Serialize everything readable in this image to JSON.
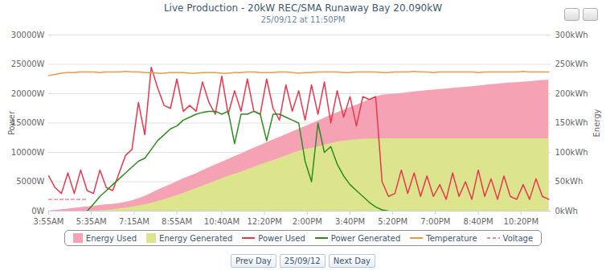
{
  "chart_data": {
    "type": "line",
    "title": "Live Production - 20kW REC/SMA Runaway Bay 20.090kW",
    "subtitle": "25/09/12 at 11:50PM",
    "ylabel": "Power",
    "y2label": "Energy",
    "grid": true,
    "legend": "bottom",
    "x": [
      235,
      250,
      265,
      280,
      295,
      310,
      325,
      340,
      355,
      370,
      385,
      400,
      415,
      430,
      445,
      460,
      475,
      490,
      505,
      520,
      535,
      550,
      565,
      580,
      595,
      610,
      625,
      640,
      655,
      670,
      685,
      700,
      715,
      730,
      745,
      760,
      775,
      790,
      805,
      820,
      835,
      850,
      865,
      880,
      895,
      910,
      925,
      940,
      955,
      970,
      985,
      1000,
      1015,
      1030,
      1045,
      1060,
      1075,
      1090,
      1105,
      1120,
      1135,
      1150,
      1165,
      1180,
      1195,
      1210,
      1225,
      1240,
      1255,
      1270,
      1285,
      1300,
      1315,
      1330,
      1345,
      1360,
      1375,
      1390,
      1405
    ],
    "xlim": [
      235,
      1410
    ],
    "xticks": [
      {
        "value": 235,
        "label": "3:55AM"
      },
      {
        "value": 335,
        "label": "5:35AM"
      },
      {
        "value": 435,
        "label": "7:15AM"
      },
      {
        "value": 535,
        "label": "8:55AM"
      },
      {
        "value": 640,
        "label": "10:40AM"
      },
      {
        "value": 740,
        "label": "12:20PM"
      },
      {
        "value": 840,
        "label": "2:00PM"
      },
      {
        "value": 940,
        "label": "3:40PM"
      },
      {
        "value": 1040,
        "label": "5:20PM"
      },
      {
        "value": 1140,
        "label": "7:00PM"
      },
      {
        "value": 1240,
        "label": "8:40PM"
      },
      {
        "value": 1340,
        "label": "10:20PM"
      }
    ],
    "ylim": [
      0,
      30000
    ],
    "yticks": [
      {
        "value": 0,
        "label": "0W"
      },
      {
        "value": 5000,
        "label": "5000W"
      },
      {
        "value": 10000,
        "label": "10000W"
      },
      {
        "value": 15000,
        "label": "15000W"
      },
      {
        "value": 20000,
        "label": "20000W"
      },
      {
        "value": 25000,
        "label": "25000W"
      },
      {
        "value": 30000,
        "label": "30000W"
      }
    ],
    "y2lim": [
      0,
      300
    ],
    "y2ticks": [
      {
        "value": 0,
        "label": "0kWh"
      },
      {
        "value": 50,
        "label": "50kWh"
      },
      {
        "value": 100,
        "label": "100kWh"
      },
      {
        "value": 150,
        "label": "150kWh"
      },
      {
        "value": 200,
        "label": "200kWh"
      },
      {
        "value": 250,
        "label": "250kWh"
      },
      {
        "value": 300,
        "label": "300kWh"
      }
    ],
    "series": [
      {
        "name": "Energy Used",
        "type": "area",
        "axis": "y2",
        "color": "#f5a3b4",
        "values": [
          0,
          1.3,
          2.3,
          3.5,
          4.7,
          6,
          7.3,
          8.2,
          9.5,
          10.9,
          11.8,
          13.1,
          15.1,
          17.6,
          21.2,
          25,
          30,
          35.7,
          40.5,
          45,
          50,
          55,
          59.4,
          63.8,
          68.8,
          73.9,
          78.3,
          83.2,
          88.1,
          92.7,
          97.4,
          102.3,
          107.3,
          111.5,
          116.4,
          121.4,
          125.6,
          130,
          134.8,
          139.5,
          144,
          148.6,
          153.4,
          158.3,
          162.9,
          167.3,
          171.9,
          176.3,
          180.6,
          184.8,
          189.6,
          194.4,
          197.5,
          198.5,
          199.2,
          200.5,
          201.7,
          203,
          204.1,
          205.2,
          206.3,
          207.2,
          208,
          209.1,
          210.2,
          211.1,
          212,
          213.1,
          214.3,
          215.3,
          216.3,
          217.3,
          218.4,
          219,
          219.8,
          220.6,
          221.5,
          222.5,
          223
        ]
      },
      {
        "name": "Energy Generated",
        "type": "area",
        "axis": "y2",
        "color": "#dce58d",
        "values": [
          0,
          0,
          0,
          0,
          0,
          0,
          0,
          0.2,
          0.7,
          1.4,
          2.4,
          3.6,
          5.1,
          6.9,
          8.9,
          11.1,
          13.5,
          16.3,
          19.4,
          22.8,
          26.4,
          30.2,
          34.1,
          38.2,
          42.4,
          46.6,
          50.9,
          55.1,
          59.3,
          62.9,
          66.4,
          70.5,
          74.7,
          78.9,
          82.5,
          86.1,
          90.2,
          94.3,
          98.2,
          102,
          105,
          106.7,
          109.2,
          112.3,
          115,
          117.4,
          119.2,
          120.5,
          121.5,
          122.3,
          122.8,
          123.1,
          123.2,
          123.2,
          123.2,
          123.2,
          123.2,
          123.2,
          123.2,
          123.2,
          123.2,
          123.2,
          123.2,
          123.2,
          123.2,
          123.2,
          123.2,
          123.2,
          123.2,
          123.2,
          123.2,
          123.2,
          123.2,
          123.2,
          123.2,
          123.2,
          123.2,
          123.2,
          123.2
        ]
      },
      {
        "name": "Power Used",
        "type": "line",
        "color": "#e8374e",
        "values": [
          6000,
          4000,
          3000,
          6500,
          3000,
          7000,
          3500,
          3000,
          7000,
          4000,
          3500,
          6500,
          9500,
          10500,
          18500,
          13000,
          24500,
          21000,
          18000,
          17500,
          22500,
          17000,
          18000,
          17000,
          22000,
          18500,
          16500,
          23000,
          16500,
          20500,
          17000,
          22500,
          17000,
          16500,
          22500,
          17500,
          15500,
          21500,
          17000,
          20500,
          15500,
          21500,
          16500,
          22000,
          15000,
          20500,
          16000,
          19500,
          14500,
          19500,
          19000,
          19500,
          5000,
          2500,
          3000,
          7000,
          3000,
          6500,
          2500,
          6000,
          2500,
          4500,
          2000,
          6500,
          2500,
          5000,
          2000,
          7000,
          2500,
          5500,
          2000,
          6000,
          2500,
          2000,
          4500,
          2000,
          5500,
          2500,
          2000
        ]
      },
      {
        "name": "Power Generated",
        "type": "line",
        "color": "#2e8b1e",
        "values": [
          null,
          null,
          null,
          null,
          null,
          null,
          0,
          1200,
          2500,
          3500,
          4500,
          5500,
          6500,
          7500,
          8500,
          9000,
          10500,
          12000,
          13000,
          14000,
          14500,
          15500,
          16000,
          16500,
          16800,
          17000,
          17000,
          16500,
          17000,
          11500,
          16500,
          16500,
          17000,
          16500,
          12000,
          16500,
          16500,
          16000,
          15500,
          15000,
          8500,
          5000,
          15000,
          10000,
          11000,
          8000,
          6000,
          4500,
          3500,
          2500,
          1500,
          700,
          200,
          0,
          null,
          null,
          null,
          null,
          null,
          null,
          null,
          null,
          null,
          null,
          null,
          null,
          null,
          null,
          null,
          null,
          null,
          null,
          null,
          null,
          null,
          null,
          null,
          null,
          null
        ]
      },
      {
        "name": "Temperature",
        "type": "line",
        "color": "#f39a3c",
        "values": [
          23100,
          23300,
          23500,
          23600,
          23600,
          23700,
          23700,
          23700,
          23600,
          23700,
          23700,
          23700,
          23800,
          23700,
          23700,
          23600,
          23600,
          23500,
          23500,
          23600,
          23600,
          23600,
          23500,
          23500,
          23600,
          23600,
          23600,
          23500,
          23500,
          23600,
          23600,
          23700,
          23700,
          23600,
          23600,
          23600,
          23700,
          23700,
          23600,
          23500,
          23600,
          23600,
          23700,
          23700,
          23700,
          23700,
          23600,
          23600,
          23700,
          23700,
          23700,
          23700,
          23600,
          23600,
          23700,
          23700,
          23700,
          23800,
          23700,
          23700,
          23600,
          23700,
          23700,
          23700,
          23700,
          23700,
          23700,
          23600,
          23700,
          23700,
          23700,
          23700,
          23700,
          23700,
          23800,
          23700,
          23700,
          23700,
          23700
        ]
      },
      {
        "name": "Voltage",
        "type": "line",
        "line_style": "dashed",
        "color": "#e48aaa",
        "values": [
          2000,
          2000,
          2000,
          2000,
          2000,
          2000,
          2000,
          null,
          null,
          null,
          null,
          null,
          null,
          null,
          null,
          null,
          null,
          null,
          null,
          null,
          null,
          null,
          null,
          null,
          null,
          null,
          null,
          null,
          null,
          null,
          null,
          null,
          null,
          null,
          null,
          null,
          null,
          null,
          null,
          null,
          null,
          null,
          null,
          null,
          null,
          null,
          null,
          null,
          null,
          null,
          null,
          null,
          null,
          null,
          null,
          null,
          null,
          null,
          null,
          null,
          null,
          null,
          null,
          null,
          null,
          null,
          null,
          null,
          null,
          null,
          null,
          null,
          null,
          null,
          null,
          null,
          null,
          null,
          null
        ]
      }
    ]
  },
  "buttons": [
    "Prev Day",
    "25/09/12",
    "Next Day"
  ]
}
